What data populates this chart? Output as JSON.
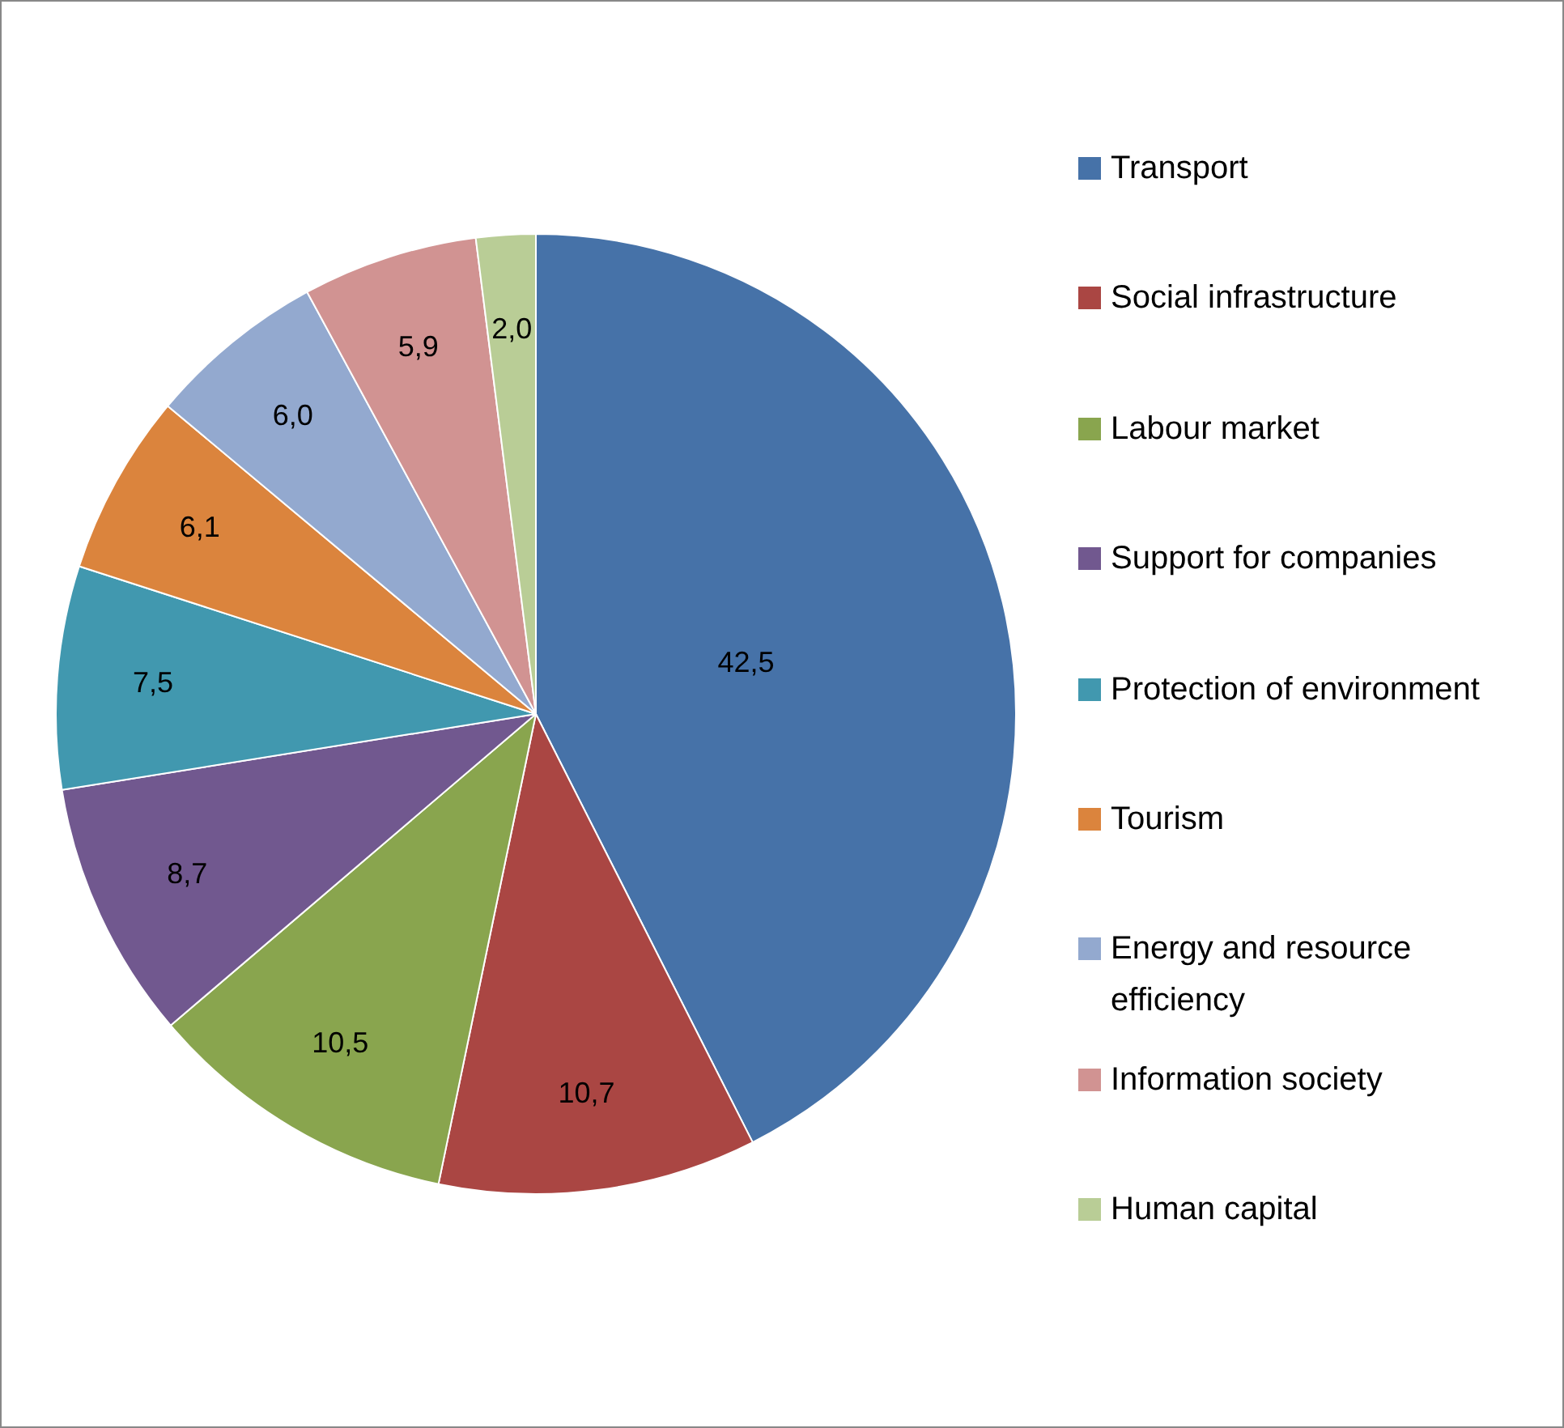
{
  "chart_data": {
    "type": "pie",
    "categories": [
      "Transport",
      "Social infrastructure",
      "Labour market",
      "Support for companies",
      "Protection of environment",
      "Tourism",
      "Energy and resource efficiency",
      "Information society",
      "Human capital"
    ],
    "values": [
      42.5,
      10.7,
      10.5,
      8.7,
      7.5,
      6.1,
      6.0,
      5.9,
      2.0
    ],
    "value_labels": [
      "42,5",
      "10,7",
      "10,5",
      "8,7",
      "7,5",
      "6,1",
      "6,0",
      "5,9",
      "2,0"
    ],
    "colors": [
      "#4672a8",
      "#aa4643",
      "#89a54e",
      "#71588f",
      "#4198af",
      "#db843d",
      "#93a9cf",
      "#d19392",
      "#b9cd96"
    ],
    "legend": "right"
  }
}
